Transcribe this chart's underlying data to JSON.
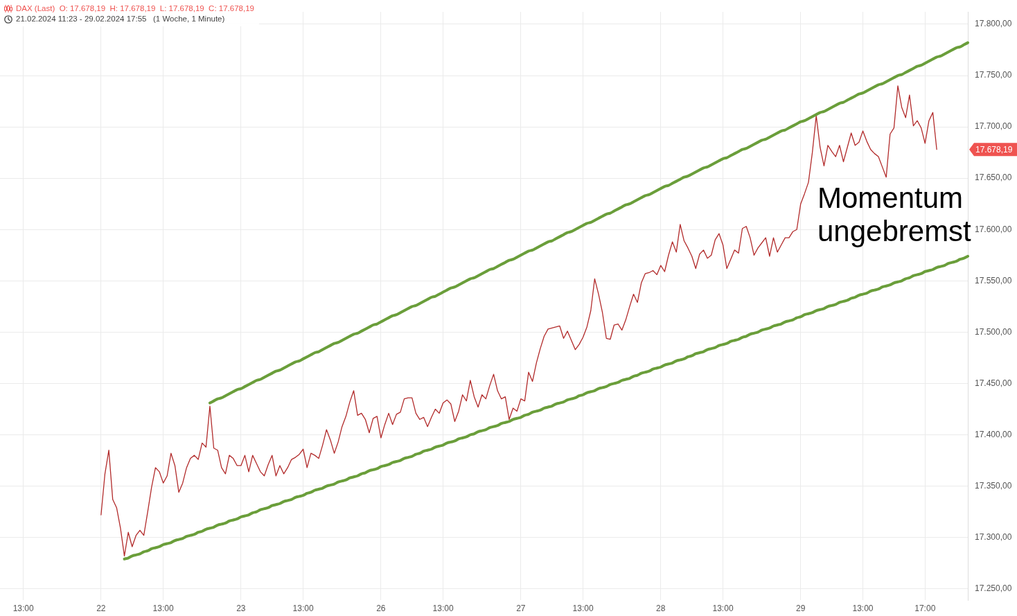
{
  "chart_data": {
    "type": "line",
    "title": "DAX (Last)  O: 17.678,19  H: 17.678,19  L: 17.678,19  C: 17.678,19",
    "subtitle": "21.02.2024 11:23 - 29.02.2024 17:55   (1 Woche, 1 Minute)",
    "annotations": [
      "Momentum\nungebremst",
      "17.678,19"
    ],
    "categories": [
      null,
      null,
      null,
      null,
      null,
      null,
      "13:00",
      null,
      null,
      null,
      null,
      null,
      null,
      null,
      null,
      null,
      null,
      null,
      null,
      null,
      null,
      null,
      null,
      null,
      null,
      null,
      "22",
      null,
      null,
      null,
      null,
      null,
      null,
      null,
      null,
      null,
      null,
      null,
      null,
      null,
      null,
      null,
      "13:00",
      null,
      null,
      null,
      null,
      null,
      null,
      null,
      null,
      null,
      null,
      null,
      null,
      null,
      null,
      null,
      null,
      null,
      null,
      null,
      "23",
      null,
      null,
      null,
      null,
      null,
      null,
      null,
      null,
      null,
      null,
      null,
      null,
      null,
      null,
      null,
      "13:00",
      null,
      null,
      null,
      null,
      null,
      null,
      null,
      null,
      null,
      null,
      null,
      null,
      null,
      null,
      null,
      null,
      null,
      null,
      null,
      "26",
      null,
      null,
      null,
      null,
      null,
      null,
      null,
      null,
      null,
      null,
      null,
      null,
      null,
      null,
      null,
      "13:00",
      null,
      null,
      null,
      null,
      null,
      null,
      null,
      null,
      null,
      null,
      null,
      null,
      null,
      null,
      null,
      null,
      null,
      null,
      null,
      "27",
      null,
      null,
      null,
      null,
      null,
      null,
      null,
      null,
      null,
      null,
      null,
      null,
      null,
      null,
      null,
      "13:00",
      null,
      null,
      null,
      null,
      null,
      null,
      null,
      null,
      null,
      null,
      null,
      null,
      null,
      null,
      null,
      null,
      null,
      null,
      null,
      "28",
      null,
      null,
      null,
      null,
      null,
      null,
      null,
      null,
      null,
      null,
      null,
      null,
      null,
      null,
      null,
      "13:00",
      null,
      null,
      null,
      null,
      null,
      null,
      null,
      null,
      null,
      null,
      null,
      null,
      null,
      null,
      null,
      null,
      null,
      null,
      null,
      "29",
      null,
      null,
      null,
      null,
      null,
      null,
      null,
      null,
      null,
      null,
      null,
      null,
      null,
      null,
      null,
      "13:00",
      null,
      null,
      null,
      null,
      null,
      null,
      null,
      null,
      null,
      null,
      null,
      null,
      null,
      null,
      null,
      "17:00",
      null,
      null,
      null,
      null,
      null,
      null,
      null,
      null,
      null,
      null,
      null
    ],
    "series": [
      {
        "color": "#b22b2b",
        "values": [
          null,
          null,
          null,
          null,
          null,
          null,
          null,
          null,
          null,
          null,
          null,
          null,
          null,
          null,
          null,
          null,
          null,
          null,
          null,
          null,
          null,
          null,
          null,
          null,
          null,
          null,
          17322,
          17362,
          17385,
          17337,
          17329,
          17309,
          17282,
          17305,
          17291,
          17302,
          17307,
          17302,
          17325,
          17349,
          17368,
          17364,
          17353,
          17360,
          17382,
          17370,
          17344,
          17353,
          17368,
          17377,
          17380,
          17376,
          17392,
          17388,
          17428,
          17387,
          17385,
          17368,
          17362,
          17380,
          17377,
          17370,
          17370,
          17380,
          17364,
          17380,
          17372,
          17364,
          17360,
          17371,
          17380,
          17360,
          17370,
          17362,
          17368,
          17376,
          17378,
          17381,
          17386,
          17368,
          17382,
          17380,
          17377,
          17390,
          17405,
          17395,
          17382,
          17393,
          17408,
          17418,
          17432,
          17443,
          17419,
          17421,
          17415,
          17402,
          17416,
          17418,
          17397,
          17410,
          17421,
          17410,
          17420,
          17422,
          17435,
          17436,
          17436,
          17421,
          17415,
          17417,
          17408,
          17417,
          17425,
          17421,
          17431,
          17434,
          17430,
          17413,
          17423,
          17439,
          17433,
          17453,
          17437,
          17427,
          17439,
          17435,
          17448,
          17459,
          17443,
          17435,
          17437,
          17415,
          17426,
          17423,
          17435,
          17433,
          17461,
          17452,
          17470,
          17484,
          17496,
          17503,
          17504,
          17505,
          17506,
          17494,
          17501,
          17492,
          17483,
          17488,
          17495,
          17505,
          17521,
          17552,
          17537,
          17519,
          17494,
          17493,
          17507,
          17508,
          17502,
          17512,
          17525,
          17537,
          17529,
          17548,
          17557,
          17558,
          17560,
          17556,
          17565,
          17559,
          17575,
          17588,
          17578,
          17605,
          17589,
          17582,
          17574,
          17562,
          17576,
          17580,
          17572,
          17575,
          17590,
          17596,
          17585,
          17562,
          17571,
          17580,
          17577,
          17601,
          17603,
          17592,
          17575,
          17582,
          17587,
          17592,
          17574,
          17592,
          17578,
          17585,
          17592,
          17592,
          17598,
          17600,
          17625,
          17635,
          17646,
          17675,
          17711,
          17680,
          17662,
          17682,
          17676,
          17671,
          17682,
          17666,
          17680,
          17694,
          17682,
          17685,
          17696,
          17686,
          17678,
          17674,
          17671,
          17661,
          17651,
          17693,
          17699,
          17740,
          17719,
          17709,
          17731,
          17701,
          17706,
          17699,
          17684,
          17706,
          17714,
          17678,
          null,
          null,
          null,
          null,
          null,
          null,
          null,
          null
        ]
      },
      {
        "color": "#6a9e3a",
        "values": [
          null,
          null,
          null,
          null,
          null,
          null,
          null,
          null,
          null,
          null,
          null,
          null,
          null,
          null,
          null,
          null,
          null,
          null,
          null,
          null,
          null,
          null,
          null,
          null,
          null,
          null,
          null,
          null,
          null,
          null,
          null,
          null,
          null,
          null,
          null,
          null,
          null,
          null,
          null,
          null,
          null,
          null,
          null,
          null,
          null,
          null,
          null,
          null,
          null,
          null,
          null,
          null,
          null,
          null,
          17431,
          17433,
          17435,
          17436,
          17438,
          17440,
          17442,
          17444,
          17445,
          17447,
          17449,
          17451,
          17453,
          17454,
          17456,
          17458,
          17460,
          17462,
          17463,
          17465,
          17467,
          17469,
          17471,
          17472,
          17474,
          17476,
          17478,
          17480,
          17481,
          17483,
          17485,
          17487,
          17489,
          17490,
          17492,
          17494,
          17496,
          17498,
          17499,
          17501,
          17503,
          17505,
          17507,
          17508,
          17510,
          17512,
          17514,
          17516,
          17517,
          17519,
          17521,
          17523,
          17525,
          17526,
          17528,
          17530,
          17532,
          17534,
          17535,
          17537,
          17539,
          17541,
          17543,
          17544,
          17546,
          17548,
          17550,
          17552,
          17553,
          17555,
          17557,
          17559,
          17561,
          17562,
          17564,
          17566,
          17568,
          17570,
          17571,
          17573,
          17575,
          17577,
          17579,
          17580,
          17582,
          17584,
          17586,
          17588,
          17589,
          17591,
          17593,
          17595,
          17597,
          17598,
          17600,
          17602,
          17604,
          17606,
          17607,
          17609,
          17611,
          17613,
          17615,
          17616,
          17618,
          17620,
          17622,
          17624,
          17625,
          17627,
          17629,
          17631,
          17633,
          17634,
          17636,
          17638,
          17640,
          17642,
          17643,
          17645,
          17647,
          17649,
          17651,
          17652,
          17654,
          17656,
          17658,
          17660,
          17661,
          17663,
          17665,
          17667,
          17669,
          17670,
          17672,
          17674,
          17676,
          17678,
          17679,
          17681,
          17683,
          17685,
          17687,
          17688,
          17690,
          17692,
          17694,
          17696,
          17697,
          17699,
          17701,
          17703,
          17705,
          17706,
          17708,
          17710,
          17712,
          17714,
          17715,
          17717,
          17719,
          17721,
          17723,
          17724,
          17726,
          17728,
          17730,
          17732,
          17733,
          17735,
          17737,
          17739,
          17741,
          17742,
          17744,
          17746,
          17748,
          17750,
          17751,
          17753,
          17755,
          17757,
          17759,
          17760,
          17762,
          17764,
          17766,
          17768,
          17769,
          17771,
          17773,
          17775,
          17777,
          17778,
          17780,
          17782
        ]
      },
      {
        "color": "#6a9e3a",
        "values": [
          null,
          null,
          null,
          null,
          null,
          null,
          null,
          null,
          null,
          null,
          null,
          null,
          null,
          null,
          null,
          null,
          null,
          null,
          null,
          null,
          null,
          null,
          null,
          null,
          null,
          null,
          null,
          null,
          null,
          null,
          null,
          null,
          17279,
          17280,
          17282,
          17283,
          17284,
          17286,
          17287,
          17289,
          17290,
          17291,
          17293,
          17294,
          17295,
          17297,
          17298,
          17299,
          17301,
          17302,
          17303,
          17305,
          17306,
          17308,
          17309,
          17310,
          17312,
          17313,
          17314,
          17316,
          17317,
          17318,
          17320,
          17321,
          17322,
          17324,
          17325,
          17327,
          17328,
          17329,
          17331,
          17332,
          17333,
          17335,
          17336,
          17337,
          17339,
          17340,
          17341,
          17343,
          17344,
          17346,
          17347,
          17348,
          17350,
          17351,
          17352,
          17354,
          17355,
          17356,
          17358,
          17359,
          17360,
          17362,
          17363,
          17365,
          17366,
          17367,
          17369,
          17370,
          17371,
          17373,
          17374,
          17375,
          17377,
          17378,
          17379,
          17381,
          17382,
          17384,
          17385,
          17386,
          17388,
          17389,
          17390,
          17392,
          17393,
          17394,
          17396,
          17397,
          17398,
          17400,
          17401,
          17403,
          17404,
          17405,
          17407,
          17408,
          17409,
          17411,
          17412,
          17413,
          17415,
          17416,
          17417,
          17419,
          17420,
          17422,
          17423,
          17424,
          17426,
          17427,
          17428,
          17430,
          17431,
          17432,
          17434,
          17435,
          17436,
          17438,
          17439,
          17441,
          17442,
          17443,
          17445,
          17446,
          17447,
          17449,
          17450,
          17451,
          17453,
          17454,
          17455,
          17457,
          17458,
          17460,
          17461,
          17462,
          17464,
          17465,
          17466,
          17468,
          17469,
          17470,
          17472,
          17473,
          17474,
          17476,
          17477,
          17479,
          17480,
          17481,
          17483,
          17484,
          17485,
          17487,
          17488,
          17489,
          17491,
          17492,
          17493,
          17495,
          17496,
          17498,
          17499,
          17500,
          17502,
          17503,
          17504,
          17506,
          17507,
          17508,
          17510,
          17511,
          17512,
          17514,
          17515,
          17517,
          17518,
          17519,
          17521,
          17522,
          17523,
          17525,
          17526,
          17527,
          17529,
          17530,
          17531,
          17533,
          17534,
          17536,
          17537,
          17538,
          17540,
          17541,
          17542,
          17544,
          17545,
          17546,
          17548,
          17549,
          17550,
          17552,
          17553,
          17555,
          17556,
          17557,
          17559,
          17560,
          17561,
          17563,
          17564,
          17565,
          17567,
          17568,
          17569,
          17571,
          17572,
          17574
        ]
      }
    ],
    "ylim": [
      17239,
      17812
    ],
    "yticks": [
      {
        "value": 17250,
        "label": "17.250,00"
      },
      {
        "value": 17300,
        "label": "17.300,00"
      },
      {
        "value": 17350,
        "label": "17.350,00"
      },
      {
        "value": 17400,
        "label": "17.400,00"
      },
      {
        "value": 17450,
        "label": "17.450,00"
      },
      {
        "value": 17500,
        "label": "17.500,00"
      },
      {
        "value": 17550,
        "label": "17.550,00"
      },
      {
        "value": 17600,
        "label": "17.600,00"
      },
      {
        "value": 17650,
        "label": "17.650,00"
      },
      {
        "value": 17700,
        "label": "17.700,00"
      },
      {
        "value": 17750,
        "label": "17.750,00"
      },
      {
        "value": 17800,
        "label": "17.800,00"
      }
    ],
    "grid": true,
    "marker": "none"
  }
}
